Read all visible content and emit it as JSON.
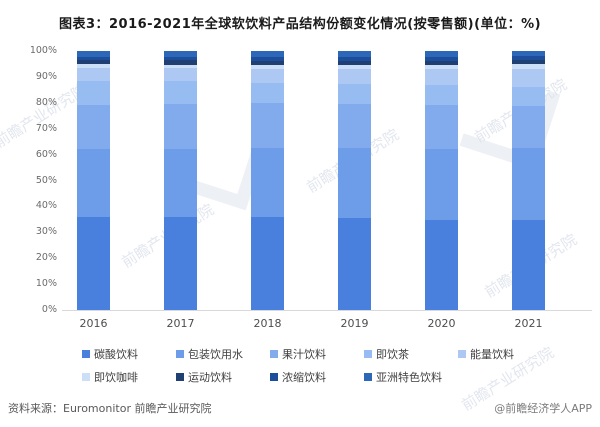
{
  "title": "图表3：2016-2021年全球软饮料产品结构份额变化情况(按零售额)(单位：%)",
  "watermark_text": "前瞻产业研究院",
  "footer": {
    "source": "资料来源：Euromonitor 前瞻产业研究院",
    "credit": "@前瞻经济学人APP"
  },
  "chart_data": {
    "type": "bar",
    "stacked": true,
    "unit": "%",
    "title": "2016-2021年全球软饮料产品结构份额变化情况(按零售额)",
    "categories": [
      "2016",
      "2017",
      "2018",
      "2019",
      "2020",
      "2021"
    ],
    "ylim": [
      0,
      100
    ],
    "ytick_step": 10,
    "ytick_labels": [
      "0%",
      "10%",
      "20%",
      "30%",
      "40%",
      "50%",
      "60%",
      "70%",
      "80%",
      "90%",
      "100%"
    ],
    "grid": false,
    "legend_position": "bottom",
    "legend_rows": [
      5,
      4
    ],
    "series": [
      {
        "name": "碳酸饮料",
        "color": "#4a80dd",
        "values": [
          36.0,
          36.0,
          35.9,
          35.5,
          34.9,
          34.7
        ]
      },
      {
        "name": "包装饮用水",
        "color": "#6d9ce8",
        "values": [
          26.2,
          26.3,
          26.6,
          27.0,
          27.4,
          27.7
        ]
      },
      {
        "name": "果汁饮料",
        "color": "#82abee",
        "values": [
          17.1,
          17.2,
          17.4,
          17.0,
          16.8,
          16.2
        ]
      },
      {
        "name": "即饮茶",
        "color": "#97bcf1",
        "values": [
          9.3,
          8.8,
          7.7,
          7.8,
          7.7,
          7.7
        ]
      },
      {
        "name": "能量饮料",
        "color": "#adc9f3",
        "values": [
          4.8,
          5.0,
          5.5,
          5.8,
          6.1,
          6.8
        ]
      },
      {
        "name": "即饮咖啡",
        "color": "#cddef7",
        "values": [
          1.5,
          1.5,
          1.6,
          1.6,
          1.6,
          1.8
        ]
      },
      {
        "name": "运动饮料",
        "color": "#203f73",
        "values": [
          1.6,
          1.6,
          1.6,
          1.6,
          1.6,
          1.6
        ]
      },
      {
        "name": "浓缩饮料",
        "color": "#1d4e9b",
        "values": [
          1.4,
          1.4,
          1.5,
          1.5,
          1.6,
          1.4
        ]
      },
      {
        "name": "亚洲特色饮料",
        "color": "#2c67b8",
        "values": [
          2.1,
          2.2,
          2.2,
          2.2,
          2.3,
          2.1
        ]
      }
    ]
  }
}
